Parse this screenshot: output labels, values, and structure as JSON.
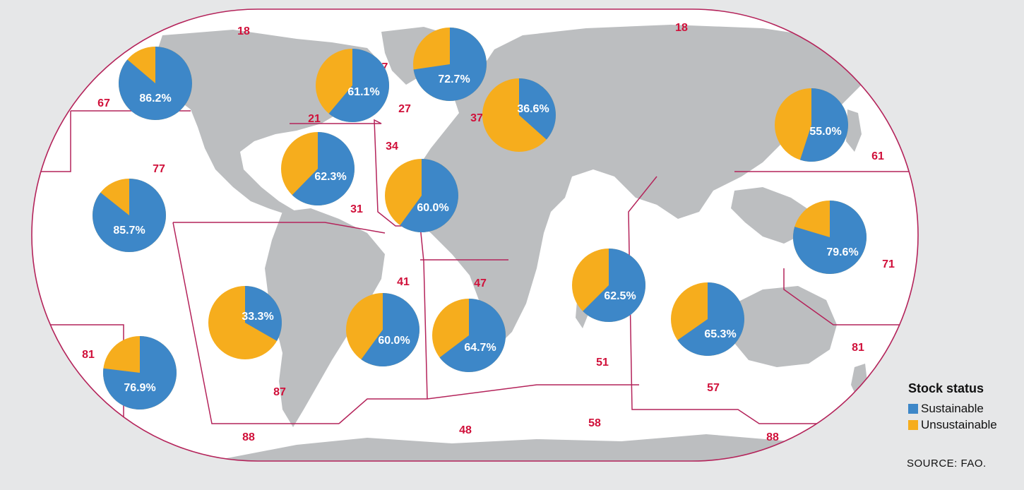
{
  "colors": {
    "background": "#e6e7e8",
    "ocean": "#ffffff",
    "land": "#bcbec0",
    "boundary": "#b4235a",
    "area_code": "#d0103a",
    "sustainable": "#3d87c8",
    "unsustainable": "#f6ad1d",
    "pie_label": "#ffffff"
  },
  "legend": {
    "title": "Stock status",
    "sustainable_label": "Sustainable",
    "unsustainable_label": "Unsustainable"
  },
  "source": "SOURCE: FAO.",
  "area_codes": [
    {
      "code": "18"
    },
    {
      "code": "18"
    },
    {
      "code": "67"
    },
    {
      "code": "21"
    },
    {
      "code": "27"
    },
    {
      "code": "37"
    },
    {
      "code": "34"
    },
    {
      "code": "77"
    },
    {
      "code": "31"
    },
    {
      "code": "61"
    },
    {
      "code": "71"
    },
    {
      "code": "41"
    },
    {
      "code": "47"
    },
    {
      "code": "81"
    },
    {
      "code": "87"
    },
    {
      "code": "51"
    },
    {
      "code": "57"
    },
    {
      "code": "81"
    },
    {
      "code": "88"
    },
    {
      "code": "48"
    },
    {
      "code": "58"
    },
    {
      "code": "88"
    },
    {
      "code": "7"
    }
  ],
  "chart_data": {
    "type": "pie",
    "series_names": [
      "Sustainable",
      "Unsustainable"
    ],
    "pies": [
      {
        "label": "86.2%",
        "sustainable": 86.2,
        "unsustainable": 13.8
      },
      {
        "label": "61.1%",
        "sustainable": 61.1,
        "unsustainable": 38.9
      },
      {
        "label": "72.7%",
        "sustainable": 72.7,
        "unsustainable": 27.3
      },
      {
        "label": "36.6%",
        "sustainable": 36.6,
        "unsustainable": 63.4
      },
      {
        "label": "55.0%",
        "sustainable": 55.0,
        "unsustainable": 45.0
      },
      {
        "label": "62.3%",
        "sustainable": 62.3,
        "unsustainable": 37.7
      },
      {
        "label": "60.0%",
        "sustainable": 60.0,
        "unsustainable": 40.0
      },
      {
        "label": "85.7%",
        "sustainable": 85.7,
        "unsustainable": 14.3
      },
      {
        "label": "79.6%",
        "sustainable": 79.6,
        "unsustainable": 20.4
      },
      {
        "label": "62.5%",
        "sustainable": 62.5,
        "unsustainable": 37.5
      },
      {
        "label": "33.3%",
        "sustainable": 33.3,
        "unsustainable": 66.7
      },
      {
        "label": "60.0%",
        "sustainable": 60.0,
        "unsustainable": 40.0
      },
      {
        "label": "64.7%",
        "sustainable": 64.7,
        "unsustainable": 35.3
      },
      {
        "label": "65.3%",
        "sustainable": 65.3,
        "unsustainable": 34.7
      },
      {
        "label": "76.9%",
        "sustainable": 76.9,
        "unsustainable": 23.1
      }
    ]
  }
}
